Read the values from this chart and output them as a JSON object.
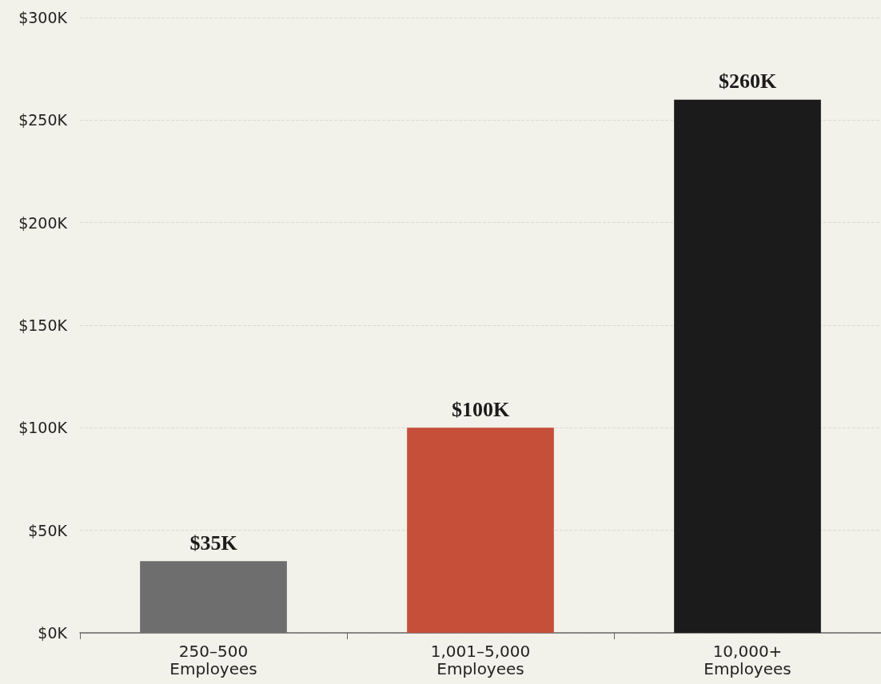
{
  "chart_data": {
    "type": "bar",
    "categories": [
      "250–500\nEmployees",
      "1,001–5,000\nEmployees",
      "10,000+\nEmployees"
    ],
    "values": [
      35000,
      100000,
      260000
    ],
    "colors": [
      "#6e6e6e",
      "#c64f3a",
      "#1b1b1b"
    ],
    "value_labels": [
      "$35K",
      "$100K",
      "$260K"
    ],
    "ylim": [
      0,
      300000
    ],
    "yticks": [
      {
        "value": 0,
        "label": "$0K"
      },
      {
        "value": 50000,
        "label": "$50K"
      },
      {
        "value": 100000,
        "label": "$100K"
      },
      {
        "value": 150000,
        "label": "$150K"
      },
      {
        "value": 200000,
        "label": "$200K"
      },
      {
        "value": 250000,
        "label": "$250K"
      },
      {
        "value": 300000,
        "label": "$300K"
      }
    ],
    "grid": "y"
  }
}
